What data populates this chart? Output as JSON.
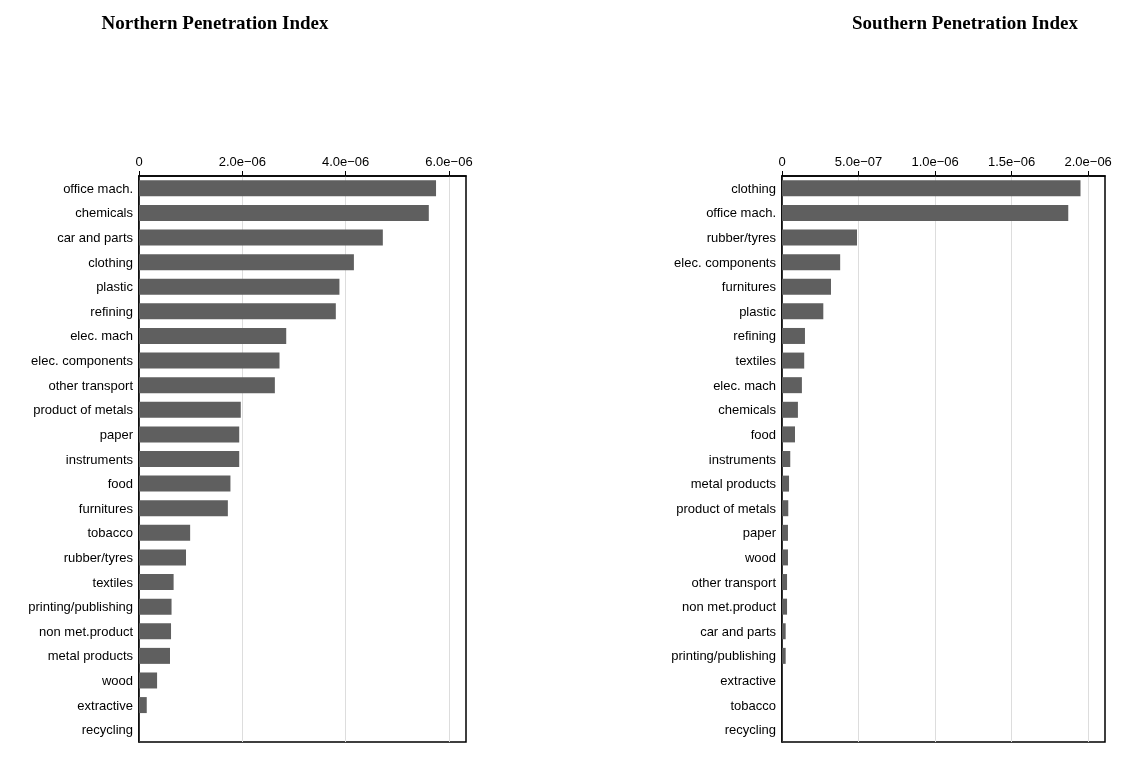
{
  "chart_data": [
    {
      "type": "bar",
      "orientation": "horizontal",
      "title": "Northern Penetration Index",
      "color": "#5f5f5f",
      "grid": "x",
      "categories": [
        "office mach.",
        "chemicals",
        "car and parts",
        "clothing",
        "plastic",
        "refining",
        "elec. mach",
        "elec. components",
        "other transport",
        "product of metals",
        "paper",
        "instruments",
        "food",
        "furnitures",
        "tobacco",
        "rubber/tyres",
        "textiles",
        "printing/publishing",
        "non met.product",
        "metal products",
        "wood",
        "extractive",
        "recycling"
      ],
      "values": [
        5.75e-06,
        5.61e-06,
        4.72e-06,
        4.16e-06,
        3.88e-06,
        3.81e-06,
        2.85e-06,
        2.72e-06,
        2.63e-06,
        1.97e-06,
        1.94e-06,
        1.94e-06,
        1.77e-06,
        1.72e-06,
        9.9e-07,
        9.1e-07,
        6.7e-07,
        6.3e-07,
        6.2e-07,
        6e-07,
        3.5e-07,
        1.5e-07,
        0
      ],
      "xlim": [
        0,
        6.33e-06
      ],
      "xticks": [
        0,
        {
          "value": 2e-06,
          "label": "2.0e−06"
        },
        {
          "value": 4e-06,
          "label": "4.0e−06"
        },
        {
          "value": 6e-06,
          "label": "6.0e−06"
        }
      ]
    },
    {
      "type": "bar",
      "orientation": "horizontal",
      "title": "Southern Penetration Index",
      "color": "#5f5f5f",
      "grid": "x",
      "categories": [
        "clothing",
        "office mach.",
        "rubber/tyres",
        "elec. components",
        "furnitures",
        "plastic",
        "refining",
        "textiles",
        "elec. mach",
        "chemicals",
        "food",
        "instruments",
        "metal products",
        "product of metals",
        "paper",
        "wood",
        "other transport",
        "non met.product",
        "car and parts",
        "printing/publishing",
        "extractive",
        "tobacco",
        "recycling"
      ],
      "values": [
        1.95e-06,
        1.87e-06,
        4.9e-07,
        3.8e-07,
        3.2e-07,
        2.7e-07,
        1.5e-07,
        1.45e-07,
        1.3e-07,
        1.04e-07,
        8.5e-08,
        5.4e-08,
        4.6e-08,
        4.1e-08,
        3.9e-08,
        3.9e-08,
        3.3e-08,
        3.3e-08,
        2.4e-08,
        2.4e-08,
        0,
        0,
        0
      ],
      "xlim": [
        0,
        2.11e-06
      ],
      "xticks": [
        0,
        {
          "value": 5e-07,
          "label": "5.0e−07"
        },
        {
          "value": 1e-06,
          "label": "1.0e−06"
        },
        {
          "value": 1.5e-06,
          "label": "1.5e−06"
        },
        {
          "value": 2e-06,
          "label": "2.0e−06"
        }
      ]
    }
  ]
}
